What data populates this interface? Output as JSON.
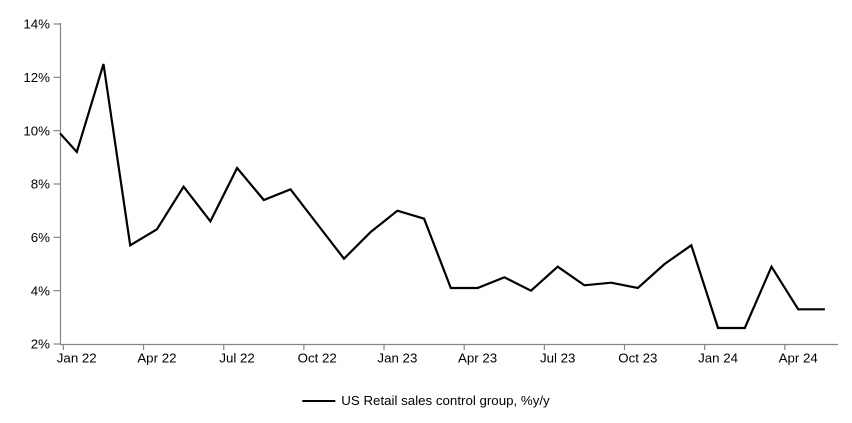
{
  "chart_data": {
    "type": "line",
    "title": "",
    "xlabel": "",
    "ylabel": "",
    "categories": [
      "Jan 22",
      "Feb 22",
      "Mar 22",
      "Apr 22",
      "May 22",
      "Jun 22",
      "Jul 22",
      "Aug 22",
      "Sep 22",
      "Oct 22",
      "Nov 22",
      "Dec 22",
      "Jan 23",
      "Feb 23",
      "Mar 23",
      "Apr 23",
      "May 23",
      "Jun 23",
      "Jul 23",
      "Aug 23",
      "Sep 23",
      "Oct 23",
      "Nov 23",
      "Dec 23",
      "Jan 24",
      "Feb 24",
      "Mar 24",
      "Apr 24",
      "May 24"
    ],
    "series": [
      {
        "name": "US Retail sales control group, %y/y",
        "values": [
          9.2,
          12.5,
          5.7,
          6.3,
          7.9,
          6.6,
          8.6,
          7.4,
          7.8,
          6.5,
          5.2,
          6.2,
          7.0,
          6.7,
          4.1,
          4.1,
          4.5,
          4.0,
          4.9,
          4.2,
          4.3,
          4.1,
          5.0,
          5.7,
          2.6,
          2.6,
          4.9,
          3.3,
          3.3
        ],
        "color": "#000000"
      }
    ],
    "left_edge_entry_value": 9.9,
    "ylim": [
      2,
      14
    ],
    "y_tick_labels": [
      "2%",
      "4%",
      "6%",
      "8%",
      "10%",
      "12%",
      "14%"
    ],
    "x_tick_labels": [
      "Jan 22",
      "Apr 22",
      "Jul 22",
      "Oct 22",
      "Jan 23",
      "Apr 23",
      "Jul 23",
      "Oct 23",
      "Jan 24",
      "Apr 24"
    ],
    "x_tick_every_months": 3,
    "grid": false,
    "legend": {
      "position": "bottom-center",
      "label": "US Retail sales control group, %y/y"
    },
    "axis_color": "#858585",
    "text_color": "#000000",
    "background_color": "#ffffff"
  }
}
